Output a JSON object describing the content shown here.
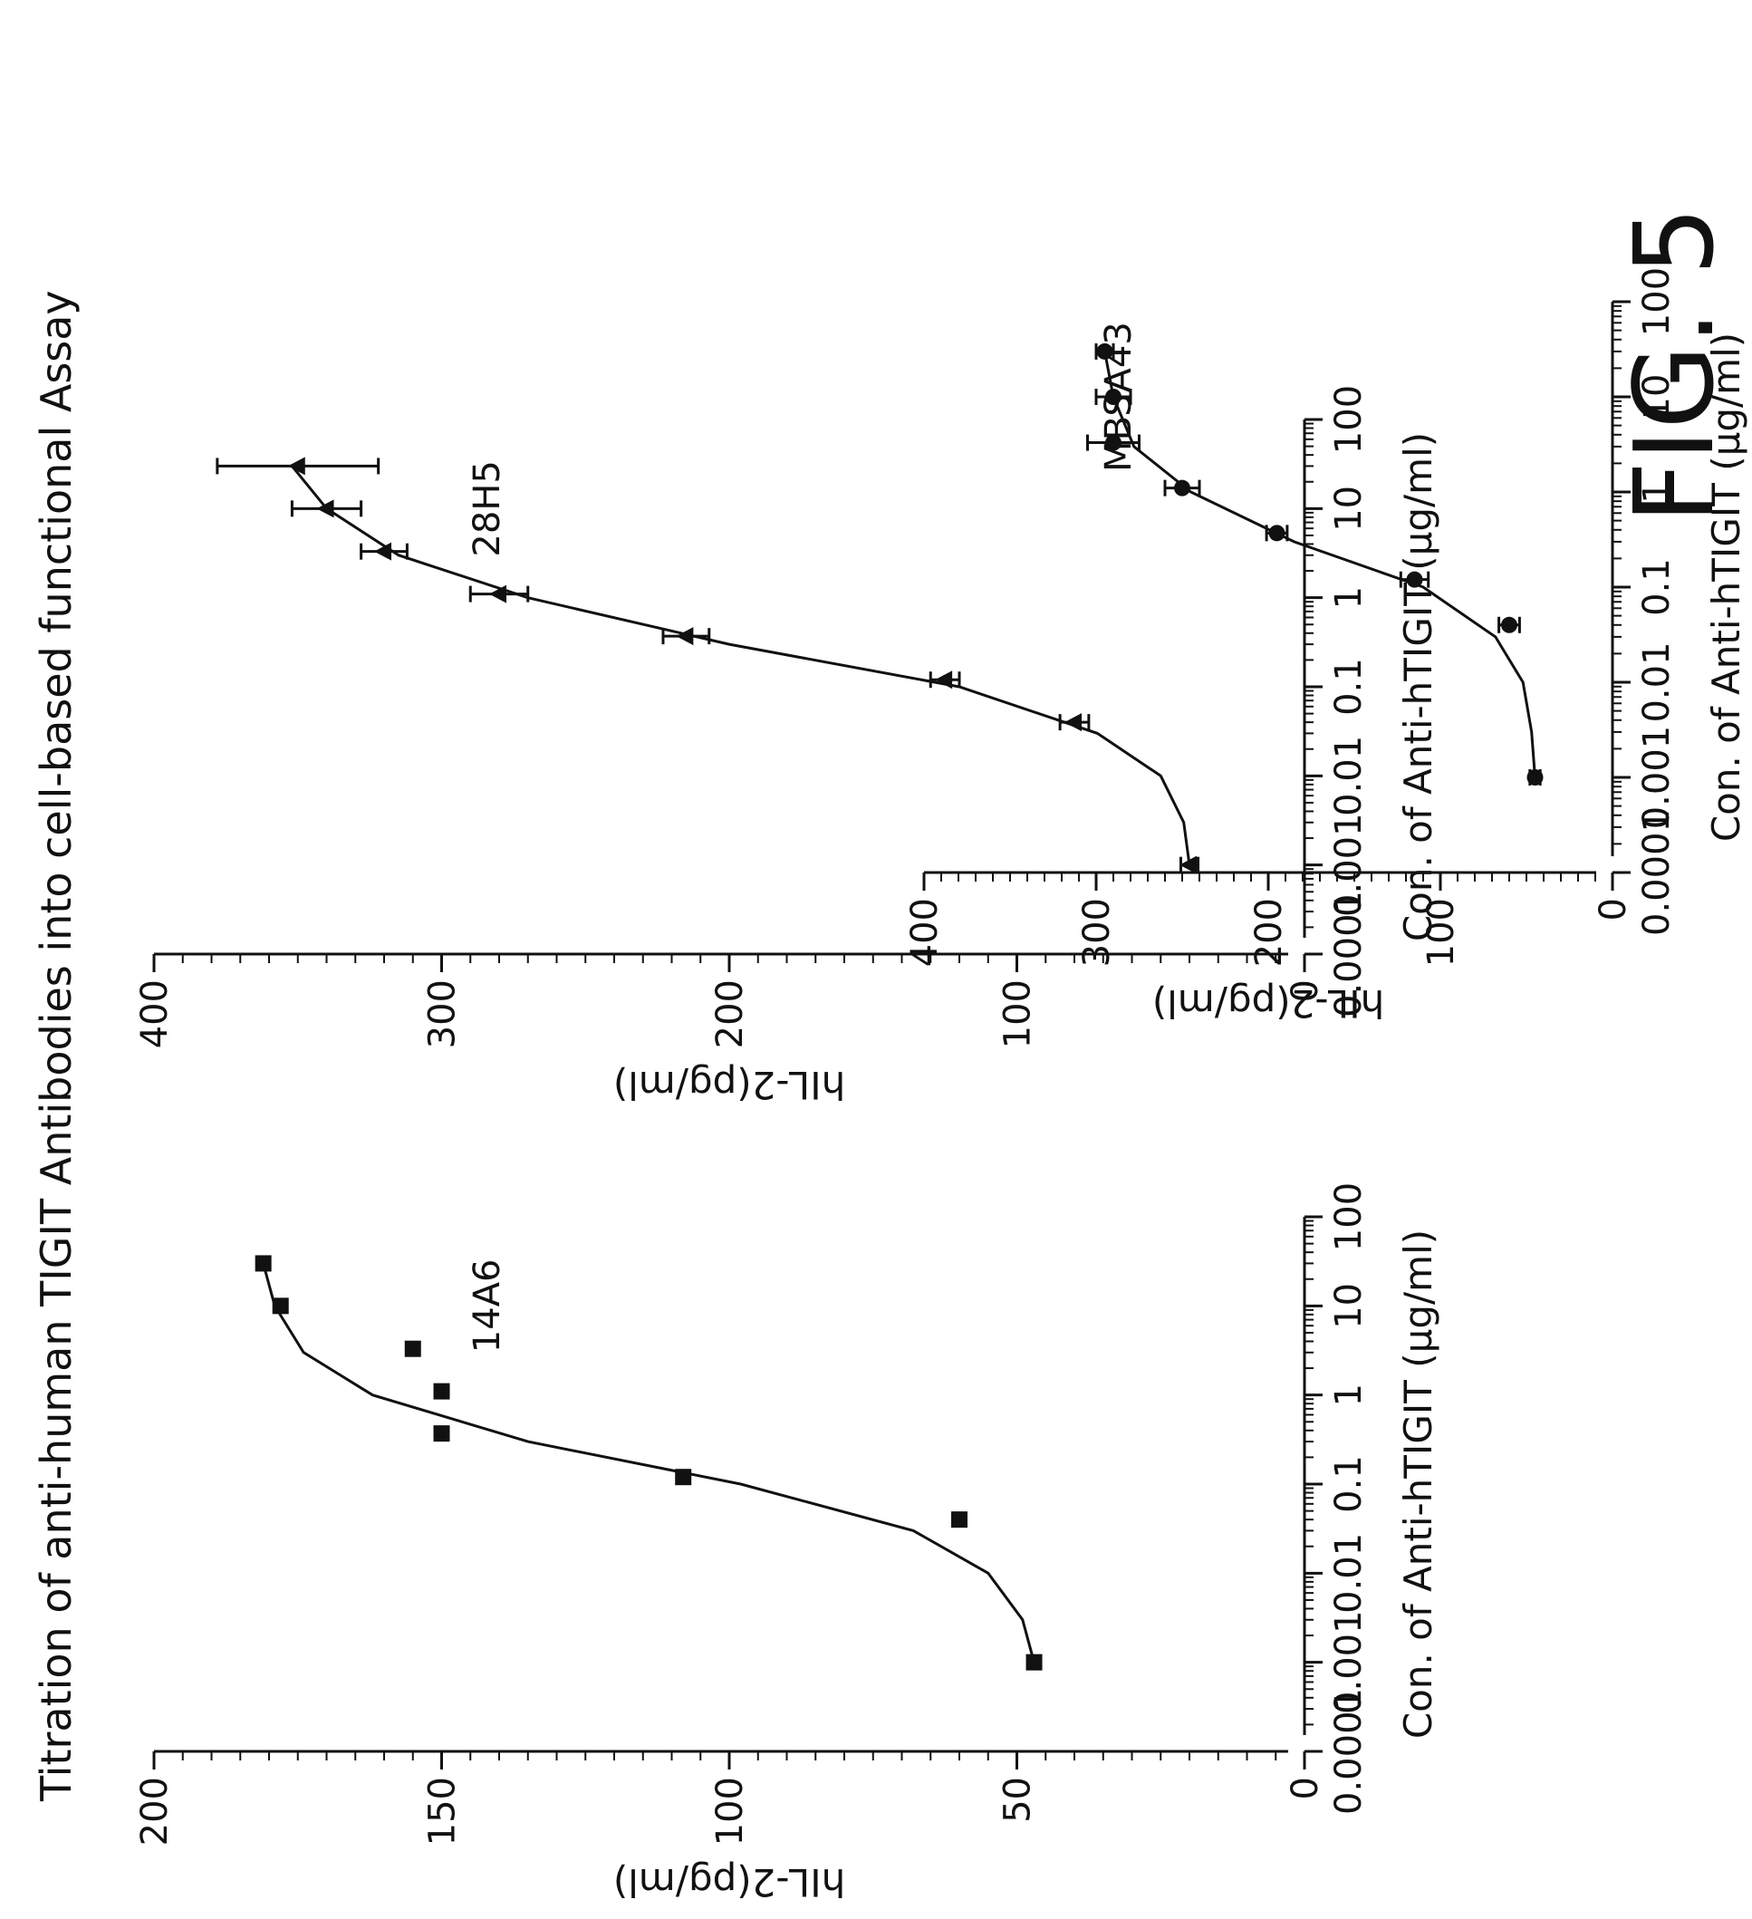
{
  "title": "Titration of anti-human TIGIT Antibodies into cell-based functional Assay",
  "figure_label": "FIG. 5",
  "chart_data": [
    {
      "type": "scatter",
      "name": "14A6",
      "xlabel": "Con. of Anti-hTIGIT (μg/ml)",
      "ylabel": "hIL-2(pg/ml)",
      "x_scale": "log",
      "xlim": [
        0.0001,
        100
      ],
      "ylim": [
        0,
        200
      ],
      "x_ticks": [
        "0.0001",
        "0.001",
        "0.01",
        "0.1",
        "1",
        "10",
        "100"
      ],
      "y_ticks": [
        "0",
        "50",
        "100",
        "150",
        "200"
      ],
      "marker": "square",
      "points": [
        {
          "x": 0.001,
          "y": 47
        },
        {
          "x": 0.04,
          "y": 60
        },
        {
          "x": 0.12,
          "y": 108
        },
        {
          "x": 0.37,
          "y": 150
        },
        {
          "x": 1.1,
          "y": 150
        },
        {
          "x": 3.3,
          "y": 155
        },
        {
          "x": 10,
          "y": 178
        },
        {
          "x": 30,
          "y": 181
        }
      ],
      "fit": [
        {
          "x": 0.001,
          "y": 47
        },
        {
          "x": 0.003,
          "y": 49
        },
        {
          "x": 0.01,
          "y": 55
        },
        {
          "x": 0.03,
          "y": 68
        },
        {
          "x": 0.1,
          "y": 98
        },
        {
          "x": 0.3,
          "y": 135
        },
        {
          "x": 1,
          "y": 162
        },
        {
          "x": 3,
          "y": 174
        },
        {
          "x": 10,
          "y": 179
        },
        {
          "x": 30,
          "y": 181
        }
      ]
    },
    {
      "type": "scatter",
      "name": "28H5",
      "xlabel": "Con. of Anti-hTIGIT (μg/ml)",
      "ylabel": "hIL-2(pg/ml)",
      "x_scale": "log",
      "xlim": [
        0.0001,
        100
      ],
      "ylim": [
        0,
        400
      ],
      "x_ticks": [
        "0.0001",
        "0.001",
        "0.01",
        "0.1",
        "1",
        "10",
        "100"
      ],
      "y_ticks": [
        "0",
        "100",
        "200",
        "300",
        "400"
      ],
      "marker": "triangle",
      "points": [
        {
          "x": 0.001,
          "y": 40,
          "err": 3
        },
        {
          "x": 0.04,
          "y": 80,
          "err": 5
        },
        {
          "x": 0.12,
          "y": 125,
          "err": 5
        },
        {
          "x": 0.37,
          "y": 215,
          "err": 8
        },
        {
          "x": 1.1,
          "y": 280,
          "err": 10
        },
        {
          "x": 3.3,
          "y": 320,
          "err": 8
        },
        {
          "x": 10,
          "y": 340,
          "err": 12
        },
        {
          "x": 30,
          "y": 350,
          "err": 28
        }
      ],
      "fit": [
        {
          "x": 0.001,
          "y": 40
        },
        {
          "x": 0.003,
          "y": 42
        },
        {
          "x": 0.01,
          "y": 50
        },
        {
          "x": 0.03,
          "y": 72
        },
        {
          "x": 0.1,
          "y": 120
        },
        {
          "x": 0.3,
          "y": 200
        },
        {
          "x": 1,
          "y": 270
        },
        {
          "x": 3,
          "y": 315
        },
        {
          "x": 10,
          "y": 340
        },
        {
          "x": 30,
          "y": 352
        }
      ]
    },
    {
      "type": "scatter",
      "name": "MBSA43",
      "xlabel": "Con. of Anti-hTIGIT (μg/ml)",
      "ylabel": "hIL-2(pg/ml)",
      "x_scale": "log",
      "xlim": [
        0.0001,
        100
      ],
      "ylim": [
        0,
        400
      ],
      "x_ticks": [
        "0.0001",
        "0.001",
        "0.01",
        "0.1",
        "1",
        "10",
        "100"
      ],
      "y_ticks": [
        "0",
        "100",
        "200",
        "300",
        "400"
      ],
      "marker": "circle",
      "points": [
        {
          "x": 0.001,
          "y": 45,
          "err": 3
        },
        {
          "x": 0.04,
          "y": 60,
          "err": 6
        },
        {
          "x": 0.12,
          "y": 115,
          "err": 8
        },
        {
          "x": 0.37,
          "y": 195,
          "err": 6
        },
        {
          "x": 1.1,
          "y": 250,
          "err": 10
        },
        {
          "x": 3.3,
          "y": 290,
          "err": 15
        },
        {
          "x": 10,
          "y": 290,
          "err": 10
        },
        {
          "x": 30,
          "y": 295,
          "err": 5
        }
      ],
      "fit": [
        {
          "x": 0.001,
          "y": 45
        },
        {
          "x": 0.003,
          "y": 47
        },
        {
          "x": 0.01,
          "y": 52
        },
        {
          "x": 0.03,
          "y": 68
        },
        {
          "x": 0.1,
          "y": 110
        },
        {
          "x": 0.3,
          "y": 185
        },
        {
          "x": 1,
          "y": 245
        },
        {
          "x": 3,
          "y": 278
        },
        {
          "x": 10,
          "y": 290
        },
        {
          "x": 30,
          "y": 295
        }
      ]
    }
  ]
}
